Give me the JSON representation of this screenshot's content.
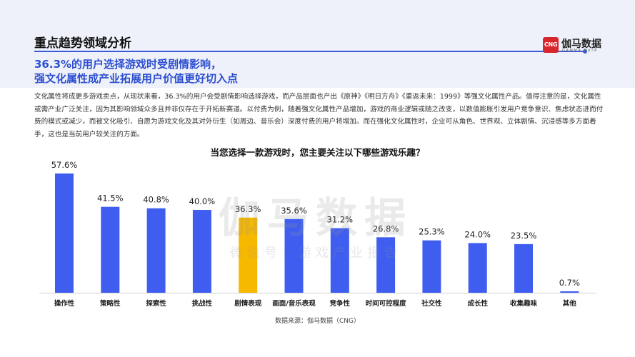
{
  "header": {
    "section_title": "重点趋势领域分析",
    "headline_line1": "36.3%的用户选择游戏时受剧情影响，",
    "headline_line2": "强文化属性成产业拓展用户价值更好切入点"
  },
  "logo": {
    "mark": "CNG",
    "name_cn": "伽马数据",
    "name_en": "GAMMA DATA"
  },
  "body_text": "文化属性将成更多游戏卖点，从现状来看，36.3%的用户会受剧情影响选择游戏，而产品层面也产出《原神》《明日方舟》《重返未来：1999》等强文化属性产品。值得注意的是，文化属性或需产业广泛关注，因为其影响领域众多且并非仅存在于开拓新赛道。以付费为例，随着强文化属性产品增加，游戏的商业逻辑或随之改变，以数值膨胀引发用户竞争意识、焦虑状态进而付费的模式或减少，而被文化吸引、自愿为游戏文化及其对外衍生（如周边、音乐会）深度付费的用户将增加。而在强化文化属性时，企业可从角色、世界观、立体剧情、沉浸感等多方面着手，这也是当前用户较关注的方面。",
  "watermark": {
    "big": "伽马数据",
    "small": "微信号：游戏产业报告"
  },
  "source": "数据来源：伽马数据（CNG）",
  "chart_data": {
    "type": "bar",
    "title": "当您选择一款游戏时，您主要关注以下哪些游戏乐趣？",
    "categories": [
      "操作性",
      "策略性",
      "探索性",
      "挑战性",
      "剧情表现",
      "画面/音乐表现",
      "竞争性",
      "时间可控程度",
      "社交性",
      "成长性",
      "收集趣味",
      "其他"
    ],
    "values": [
      57.6,
      41.5,
      40.8,
      40.0,
      36.3,
      35.6,
      31.2,
      26.8,
      25.3,
      24.0,
      23.5,
      0.7
    ],
    "value_labels": [
      "57.6%",
      "41.5%",
      "40.8%",
      "40.0%",
      "36.3%",
      "35.6%",
      "31.2%",
      "26.8%",
      "25.3%",
      "24.0%",
      "23.5%",
      "0.7%"
    ],
    "highlight_category": "剧情表现",
    "colors": {
      "bar": "#3f5ef0",
      "highlight": "#f7b800"
    },
    "ylim": [
      0,
      60
    ],
    "grid": false,
    "xlabel": "",
    "ylabel": ""
  }
}
